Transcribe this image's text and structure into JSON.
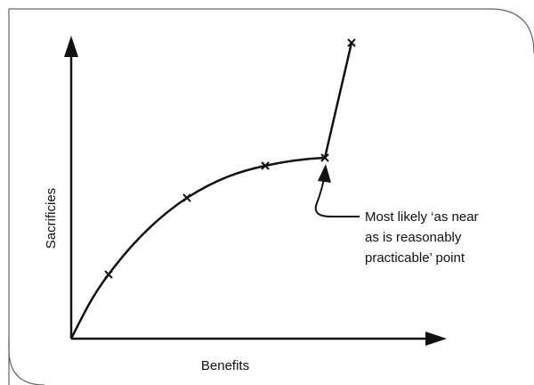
{
  "diagram": {
    "y_axis_label": "Sacrificies",
    "x_axis_label": "Benefits",
    "annotation": [
      "Most likely ‘as near",
      "as is reasonably",
      "practicable’ point"
    ]
  }
}
